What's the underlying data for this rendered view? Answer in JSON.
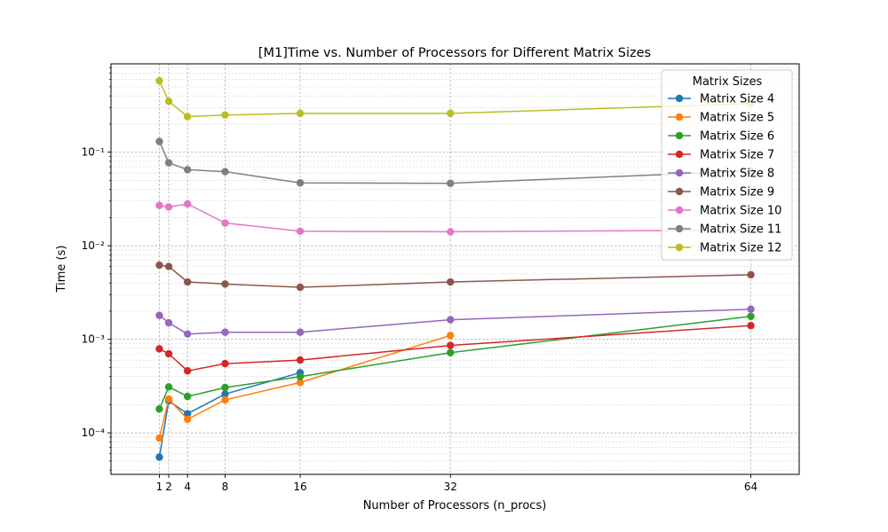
{
  "chart_data": {
    "type": "line",
    "title": "[M1]Time vs. Number of Processors for Different Matrix Sizes",
    "xlabel": "Number of Processors (n_procs)",
    "ylabel": "Time (s)",
    "xscale": "linear",
    "yscale": "log",
    "xlim": [
      -4.15,
      69.15
    ],
    "ylim": [
      3.6e-05,
      0.88
    ],
    "xticks": [
      1,
      2,
      4,
      8,
      16,
      32,
      64
    ],
    "xtick_labels": [
      "1",
      "2",
      "4",
      "8",
      "16",
      "32",
      "64"
    ],
    "yticks": [
      0.0001,
      0.001,
      0.01,
      0.1
    ],
    "ytick_labels": [
      "10⁻⁴",
      "10⁻³",
      "10⁻²",
      "10⁻¹"
    ],
    "grid": true,
    "legend": {
      "title": "Matrix Sizes",
      "position": "top-right"
    },
    "series": [
      {
        "name": "Matrix Size 4",
        "color": "#1f77b4",
        "points": [
          [
            1,
            5.5e-05
          ],
          [
            2,
            0.00022
          ],
          [
            4,
            0.00016
          ],
          [
            8,
            0.00026
          ],
          [
            16,
            0.00044
          ]
        ]
      },
      {
        "name": "Matrix Size 5",
        "color": "#ff7f0e",
        "points": [
          [
            1,
            8.8e-05
          ],
          [
            2,
            0.00023
          ],
          [
            4,
            0.00014
          ],
          [
            8,
            0.000225
          ],
          [
            16,
            0.000345
          ],
          [
            32,
            0.0011
          ]
        ]
      },
      {
        "name": "Matrix Size 6",
        "color": "#2ca02c",
        "points": [
          [
            1,
            0.00018
          ],
          [
            2,
            0.00031
          ],
          [
            4,
            0.000245
          ],
          [
            8,
            0.000305
          ],
          [
            16,
            0.0004
          ],
          [
            32,
            0.00072
          ],
          [
            64,
            0.00176
          ]
        ]
      },
      {
        "name": "Matrix Size 7",
        "color": "#d62728",
        "points": [
          [
            1,
            0.00079
          ],
          [
            2,
            0.0007
          ],
          [
            4,
            0.00046
          ],
          [
            8,
            0.00055
          ],
          [
            16,
            0.0006
          ],
          [
            32,
            0.00086
          ],
          [
            64,
            0.0014
          ]
        ]
      },
      {
        "name": "Matrix Size 8",
        "color": "#9467bd",
        "points": [
          [
            1,
            0.0018
          ],
          [
            2,
            0.0015
          ],
          [
            4,
            0.00114
          ],
          [
            8,
            0.00119
          ],
          [
            16,
            0.00119
          ],
          [
            32,
            0.00162
          ],
          [
            64,
            0.0021
          ]
        ]
      },
      {
        "name": "Matrix Size 9",
        "color": "#8c564b",
        "points": [
          [
            1,
            0.0062
          ],
          [
            2,
            0.006
          ],
          [
            4,
            0.0041
          ],
          [
            8,
            0.0039
          ],
          [
            16,
            0.0036
          ],
          [
            32,
            0.0041
          ],
          [
            64,
            0.0049
          ]
        ]
      },
      {
        "name": "Matrix Size 10",
        "color": "#e377c2",
        "points": [
          [
            1,
            0.027
          ],
          [
            2,
            0.026
          ],
          [
            4,
            0.028
          ],
          [
            8,
            0.0175
          ],
          [
            16,
            0.0143
          ],
          [
            32,
            0.0141
          ],
          [
            64,
            0.0147
          ]
        ]
      },
      {
        "name": "Matrix Size 11",
        "color": "#7f7f7f",
        "points": [
          [
            1,
            0.13
          ],
          [
            2,
            0.077
          ],
          [
            4,
            0.065
          ],
          [
            8,
            0.062
          ],
          [
            16,
            0.047
          ],
          [
            32,
            0.0465
          ],
          [
            64,
            0.063
          ]
        ]
      },
      {
        "name": "Matrix Size 12",
        "color": "#bcbd22",
        "points": [
          [
            1,
            0.58
          ],
          [
            2,
            0.35
          ],
          [
            4,
            0.24
          ],
          [
            8,
            0.25
          ],
          [
            16,
            0.26
          ],
          [
            32,
            0.26
          ],
          [
            64,
            0.33
          ]
        ]
      }
    ]
  }
}
